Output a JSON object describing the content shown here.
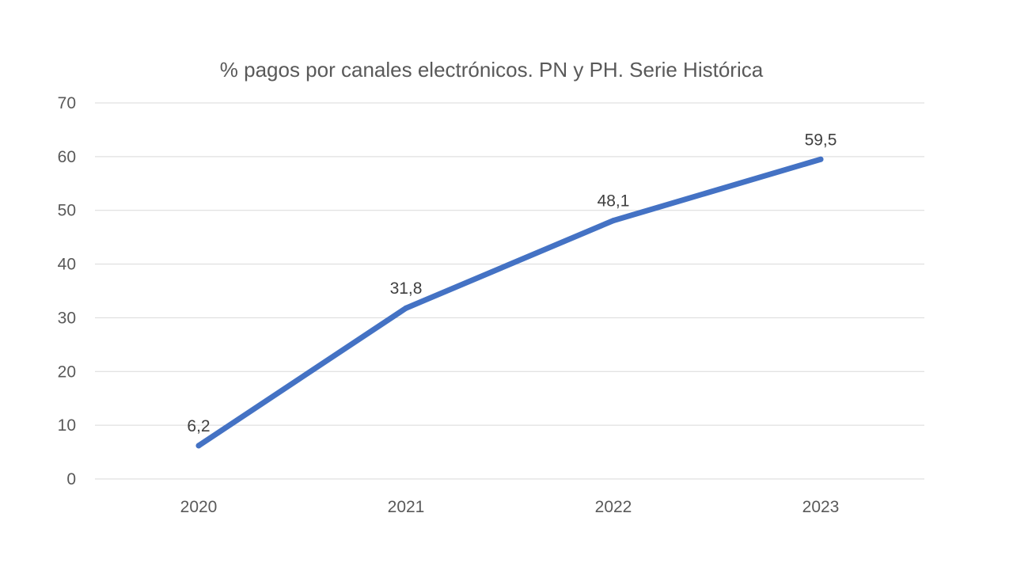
{
  "chart_data": {
    "type": "line",
    "title": "% pagos por canales electrónicos. PN y PH. Serie Histórica",
    "xlabel": "",
    "ylabel": "",
    "categories": [
      "2020",
      "2021",
      "2022",
      "2023"
    ],
    "series": [
      {
        "values": [
          6.2,
          31.8,
          48.1,
          59.5
        ],
        "labels": [
          "6,2",
          "31,8",
          "48,1",
          "59,5"
        ],
        "color": "#4472C4"
      }
    ],
    "ylim": [
      0,
      70
    ],
    "yticks": [
      "0",
      "10",
      "20",
      "30",
      "40",
      "50",
      "60",
      "70"
    ],
    "grid": true,
    "legend": "none"
  }
}
